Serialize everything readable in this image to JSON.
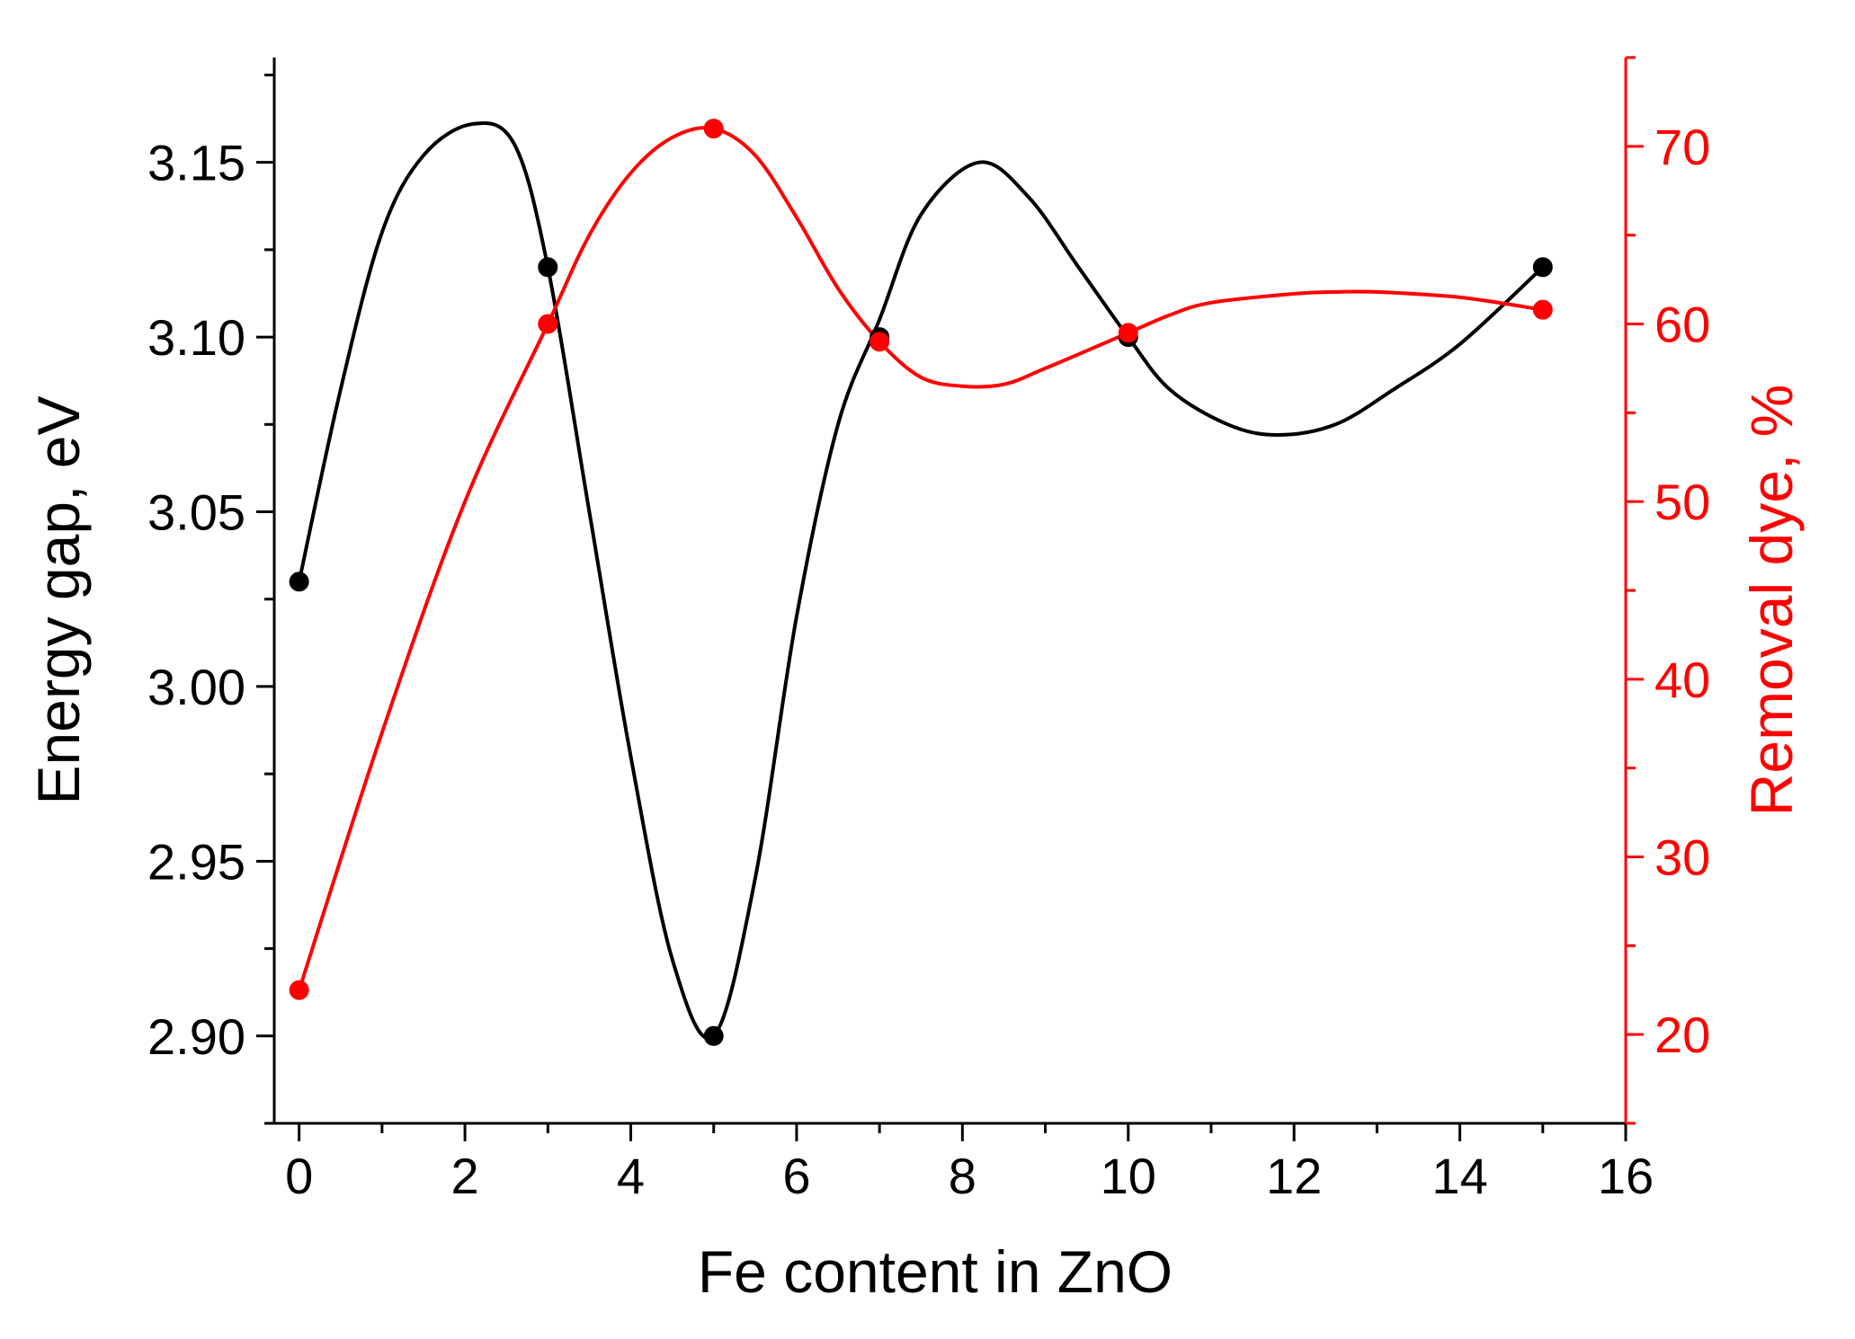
{
  "chart_data": {
    "type": "line",
    "xlabel": "Fe content in ZnO",
    "ylabel_left": "Energy gap, eV",
    "ylabel_right": "Removal dye, %",
    "xlim": [
      -0.3,
      16
    ],
    "ylim_left": [
      2.875,
      3.18
    ],
    "ylim_right": [
      15,
      75
    ],
    "x_ticks": [
      0,
      2,
      4,
      6,
      8,
      10,
      12,
      14,
      16
    ],
    "y_left_ticks": [
      2.9,
      2.95,
      3.0,
      3.05,
      3.1,
      3.15
    ],
    "y_left_tick_labels": [
      "2.90",
      "2.95",
      "3.00",
      "3.05",
      "3.10",
      "3.15"
    ],
    "y_right_ticks": [
      20,
      30,
      40,
      50,
      60,
      70
    ],
    "grid": false,
    "series": [
      {
        "axis": "left",
        "color": "#000000",
        "x": [
          0,
          3,
          5,
          7,
          10,
          15
        ],
        "y": [
          3.03,
          3.12,
          2.9,
          3.1,
          3.1,
          3.12
        ],
        "curve": [
          [
            0,
            3.03
          ],
          [
            0.5,
            3.085
          ],
          [
            1,
            3.13
          ],
          [
            1.5,
            3.152
          ],
          [
            2.1,
            3.161
          ],
          [
            2.6,
            3.155
          ],
          [
            3,
            3.12
          ],
          [
            3.5,
            3.05
          ],
          [
            4,
            2.98
          ],
          [
            4.5,
            2.922
          ],
          [
            5,
            2.9
          ],
          [
            5.5,
            2.945
          ],
          [
            6,
            3.02
          ],
          [
            6.5,
            3.075
          ],
          [
            7,
            3.105
          ],
          [
            7.5,
            3.135
          ],
          [
            8.2,
            3.15
          ],
          [
            8.8,
            3.14
          ],
          [
            9.4,
            3.12
          ],
          [
            10,
            3.1
          ],
          [
            10.5,
            3.085
          ],
          [
            11.2,
            3.075
          ],
          [
            11.8,
            3.072
          ],
          [
            12.5,
            3.075
          ],
          [
            13.2,
            3.085
          ],
          [
            14,
            3.098
          ],
          [
            15,
            3.12
          ]
        ]
      },
      {
        "axis": "right",
        "color": "#ff0000",
        "x": [
          0,
          3,
          5,
          7,
          10,
          15
        ],
        "y": [
          22.5,
          60,
          71,
          59,
          59.5,
          60.8
        ],
        "curve": [
          [
            0,
            22.5
          ],
          [
            1,
            37
          ],
          [
            2,
            50
          ],
          [
            3,
            60
          ],
          [
            3.5,
            65
          ],
          [
            4,
            68.5
          ],
          [
            4.5,
            70.5
          ],
          [
            5,
            71
          ],
          [
            5.5,
            69.5
          ],
          [
            6,
            66
          ],
          [
            6.5,
            62
          ],
          [
            7,
            59
          ],
          [
            7.5,
            57
          ],
          [
            8,
            56.5
          ],
          [
            8.5,
            56.6
          ],
          [
            9,
            57.5
          ],
          [
            10,
            59.5
          ],
          [
            10.5,
            60.5
          ],
          [
            11,
            61.2
          ],
          [
            12,
            61.7
          ],
          [
            12.5,
            61.8
          ],
          [
            13,
            61.8
          ],
          [
            14,
            61.5
          ],
          [
            15,
            60.8
          ]
        ]
      }
    ]
  }
}
